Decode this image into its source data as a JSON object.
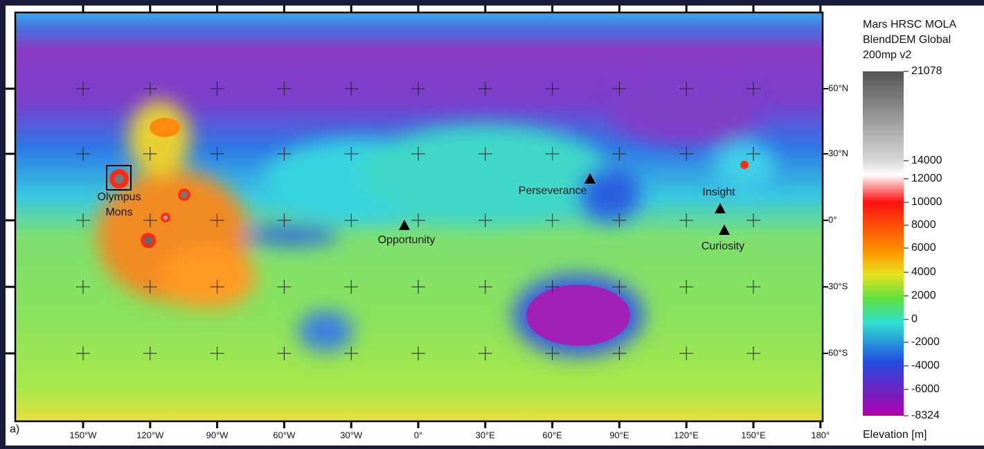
{
  "map": {
    "panel_label": "a)",
    "longitude_labels": [
      "150°W",
      "120°W",
      "90°W",
      "60°W",
      "30°W",
      "0°",
      "30°E",
      "60°E",
      "90°E",
      "120°E",
      "150°E",
      "180°"
    ],
    "latitude_labels": [
      "60°N",
      "30°N",
      "0°",
      "30°S",
      "60°S"
    ],
    "feature_label_lines": [
      "Olympus",
      "Mons"
    ],
    "sites": [
      {
        "label": "Perseverance"
      },
      {
        "label": "Opportunity"
      },
      {
        "label": "Insight"
      },
      {
        "label": "Curiosity"
      }
    ],
    "legend": {
      "title_lines": [
        "Mars HRSC MOLA",
        "BlendDEM Global",
        "200mp v2"
      ],
      "ticks": [
        21078,
        14000,
        12000,
        10000,
        8000,
        6000,
        4000,
        2000,
        0,
        -2000,
        -4000,
        -6000,
        -8324
      ],
      "axis_label": "Elevation [m]"
    }
  }
}
